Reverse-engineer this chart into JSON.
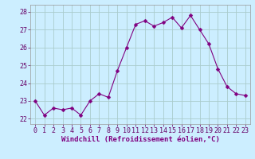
{
  "x": [
    0,
    1,
    2,
    3,
    4,
    5,
    6,
    7,
    8,
    9,
    10,
    11,
    12,
    13,
    14,
    15,
    16,
    17,
    18,
    19,
    20,
    21,
    22,
    23
  ],
  "y": [
    23.0,
    22.2,
    22.6,
    22.5,
    22.6,
    22.2,
    23.0,
    23.4,
    23.2,
    24.7,
    26.0,
    27.3,
    27.5,
    27.2,
    27.4,
    27.7,
    27.1,
    27.8,
    27.0,
    26.2,
    24.8,
    23.8,
    23.4,
    23.3
  ],
  "line_color": "#800080",
  "marker": "D",
  "marker_size": 2.5,
  "bg_color": "#cceeff",
  "grid_color": "#aacccc",
  "xlabel": "Windchill (Refroidissement éolien,°C)",
  "ylabel_ticks": [
    22,
    23,
    24,
    25,
    26,
    27,
    28
  ],
  "xlim": [
    -0.5,
    23.5
  ],
  "ylim": [
    21.7,
    28.4
  ],
  "label_fontsize": 6.5,
  "tick_fontsize": 6.0
}
